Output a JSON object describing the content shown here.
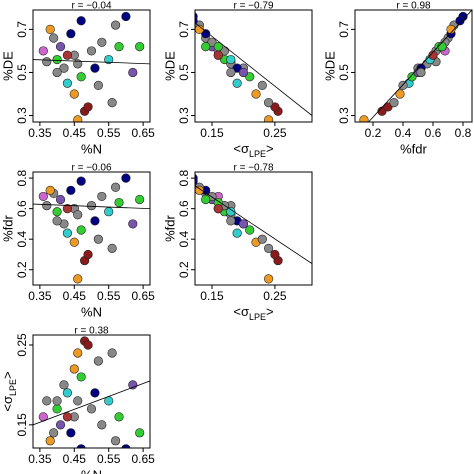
{
  "chart_data": [
    {
      "type": "scatter",
      "title": "r = −0.04",
      "xlabel": "%N",
      "ylabel": "%DE",
      "xlim": [
        0.33,
        0.67
      ],
      "ylim": [
        0.27,
        0.79
      ],
      "xticks": [
        0.35,
        0.45,
        0.55,
        0.65
      ],
      "yticks": [
        0.3,
        0.5,
        0.7
      ],
      "x": [
        0.36,
        0.37,
        0.39,
        0.4,
        0.41,
        0.42,
        0.43,
        0.44,
        0.45,
        0.45,
        0.46,
        0.47,
        0.48,
        0.49,
        0.5,
        0.51,
        0.52,
        0.53,
        0.55,
        0.57,
        0.58,
        0.6,
        0.62,
        0.64,
        0.38,
        0.43,
        0.47,
        0.4,
        0.46,
        0.56
      ],
      "values": [
        0.6,
        0.55,
        0.66,
        0.56,
        0.62,
        0.52,
        0.45,
        0.68,
        0.58,
        0.4,
        0.54,
        0.48,
        0.32,
        0.34,
        0.6,
        0.52,
        0.44,
        0.64,
        0.56,
        0.72,
        0.62,
        0.76,
        0.5,
        0.62,
        0.7,
        0.58,
        0.74,
        0.5,
        0.28,
        0.36
      ],
      "colors": [
        "#cc66cc",
        "#888888",
        "#888888",
        "#33cc33",
        "#7755aa",
        "#888888",
        "#33cccc",
        "#000080",
        "#888888",
        "#ee9922",
        "#888888",
        "#33cc33",
        "#8b1a1a",
        "#8b1a1a",
        "#888888",
        "#000080",
        "#888888",
        "#888888",
        "#33cccc",
        "#888888",
        "#33cc33",
        "#000080",
        "#7755aa",
        "#33cc33",
        "#ee9922",
        "#aa3333",
        "#000080",
        "#888888",
        "#ee9922",
        "#888888"
      ],
      "fit": {
        "x": [
          0.33,
          0.67
        ],
        "y": [
          0.56,
          0.54
        ]
      }
    },
    {
      "type": "scatter",
      "title": "r = −0.79",
      "xlabel": "",
      "xlabel_parts": [
        "<σ",
        "LPE",
        ">"
      ],
      "ylabel": "%DE",
      "xlim": [
        0.123,
        0.309
      ],
      "ylim": [
        0.27,
        0.79
      ],
      "xticks": [
        0.15,
        0.25
      ],
      "yticks": [
        0.3,
        0.5,
        0.7
      ],
      "x": [
        0.16,
        0.18,
        0.14,
        0.17,
        0.15,
        0.2,
        0.19,
        0.14,
        0.16,
        0.22,
        0.18,
        0.21,
        0.255,
        0.25,
        0.17,
        0.19,
        0.23,
        0.15,
        0.18,
        0.13,
        0.16,
        0.12,
        0.2,
        0.14,
        0.13,
        0.16,
        0.12,
        0.18,
        0.24,
        0.24
      ],
      "values": [
        0.6,
        0.55,
        0.66,
        0.56,
        0.62,
        0.52,
        0.45,
        0.68,
        0.58,
        0.4,
        0.54,
        0.48,
        0.32,
        0.34,
        0.6,
        0.52,
        0.44,
        0.64,
        0.56,
        0.72,
        0.62,
        0.76,
        0.5,
        0.62,
        0.7,
        0.58,
        0.74,
        0.5,
        0.28,
        0.36
      ],
      "colors": [
        "#cc66cc",
        "#888888",
        "#888888",
        "#33cc33",
        "#7755aa",
        "#888888",
        "#33cccc",
        "#000080",
        "#888888",
        "#ee9922",
        "#888888",
        "#33cc33",
        "#8b1a1a",
        "#8b1a1a",
        "#888888",
        "#000080",
        "#888888",
        "#888888",
        "#33cccc",
        "#888888",
        "#33cc33",
        "#000080",
        "#7755aa",
        "#33cc33",
        "#ee9922",
        "#aa3333",
        "#000080",
        "#888888",
        "#ee9922",
        "#888888"
      ],
      "fit": {
        "x": [
          0.123,
          0.309
        ],
        "y": [
          0.73,
          0.3
        ]
      }
    },
    {
      "type": "scatter",
      "title": "r = 0.98",
      "xlabel": "%fdr",
      "ylabel": "%DE",
      "xlim": [
        0.08,
        0.86
      ],
      "ylim": [
        0.27,
        0.79
      ],
      "xticks": [
        0.2,
        0.4,
        0.6,
        0.8
      ],
      "yticks": [
        0.3,
        0.5,
        0.7
      ],
      "x": [
        0.68,
        0.62,
        0.7,
        0.58,
        0.66,
        0.5,
        0.44,
        0.72,
        0.6,
        0.38,
        0.56,
        0.46,
        0.26,
        0.3,
        0.62,
        0.52,
        0.4,
        0.68,
        0.58,
        0.74,
        0.64,
        0.8,
        0.5,
        0.66,
        0.72,
        0.6,
        0.78,
        0.52,
        0.14,
        0.34
      ],
      "values": [
        0.6,
        0.55,
        0.66,
        0.56,
        0.62,
        0.52,
        0.45,
        0.68,
        0.58,
        0.4,
        0.54,
        0.48,
        0.32,
        0.34,
        0.6,
        0.52,
        0.44,
        0.64,
        0.56,
        0.72,
        0.62,
        0.76,
        0.5,
        0.62,
        0.7,
        0.58,
        0.74,
        0.5,
        0.28,
        0.36
      ],
      "colors": [
        "#cc66cc",
        "#888888",
        "#888888",
        "#33cc33",
        "#7755aa",
        "#888888",
        "#33cccc",
        "#000080",
        "#888888",
        "#ee9922",
        "#888888",
        "#33cc33",
        "#8b1a1a",
        "#8b1a1a",
        "#888888",
        "#000080",
        "#888888",
        "#888888",
        "#33cccc",
        "#888888",
        "#33cc33",
        "#000080",
        "#7755aa",
        "#33cc33",
        "#ee9922",
        "#aa3333",
        "#000080",
        "#888888",
        "#ee9922",
        "#888888"
      ],
      "fit": {
        "x": [
          0.17,
          0.86
        ],
        "y": [
          0.27,
          0.79
        ]
      }
    },
    {
      "type": "scatter",
      "title": "r = −0.06",
      "xlabel": "%N",
      "ylabel": "%fdr",
      "xlim": [
        0.33,
        0.67
      ],
      "ylim": [
        0.1,
        0.84
      ],
      "xticks": [
        0.35,
        0.45,
        0.55,
        0.65
      ],
      "yticks": [
        0.2,
        0.4,
        0.6,
        0.8
      ],
      "x": [
        0.36,
        0.37,
        0.39,
        0.4,
        0.41,
        0.42,
        0.43,
        0.44,
        0.45,
        0.45,
        0.46,
        0.47,
        0.48,
        0.49,
        0.5,
        0.51,
        0.52,
        0.53,
        0.55,
        0.57,
        0.58,
        0.6,
        0.62,
        0.64,
        0.38,
        0.43,
        0.47,
        0.4,
        0.46,
        0.56
      ],
      "values": [
        0.68,
        0.62,
        0.7,
        0.58,
        0.66,
        0.5,
        0.44,
        0.72,
        0.6,
        0.38,
        0.56,
        0.46,
        0.26,
        0.3,
        0.62,
        0.52,
        0.4,
        0.68,
        0.58,
        0.74,
        0.64,
        0.8,
        0.5,
        0.66,
        0.72,
        0.6,
        0.78,
        0.52,
        0.14,
        0.34
      ],
      "colors": [
        "#cc66cc",
        "#888888",
        "#888888",
        "#33cc33",
        "#7755aa",
        "#888888",
        "#33cccc",
        "#000080",
        "#888888",
        "#ee9922",
        "#888888",
        "#33cc33",
        "#8b1a1a",
        "#8b1a1a",
        "#888888",
        "#000080",
        "#888888",
        "#888888",
        "#33cccc",
        "#888888",
        "#33cc33",
        "#000080",
        "#7755aa",
        "#33cc33",
        "#ee9922",
        "#aa3333",
        "#000080",
        "#888888",
        "#ee9922",
        "#888888"
      ],
      "fit": {
        "x": [
          0.33,
          0.67
        ],
        "y": [
          0.63,
          0.6
        ]
      }
    },
    {
      "type": "scatter",
      "title": "r = −0.78",
      "xlabel": "",
      "xlabel_parts": [
        "<σ",
        "LPE",
        ">"
      ],
      "ylabel": "%fdr",
      "xlim": [
        0.123,
        0.309
      ],
      "ylim": [
        0.1,
        0.84
      ],
      "xticks": [
        0.15,
        0.25
      ],
      "yticks": [
        0.2,
        0.4,
        0.6,
        0.8
      ],
      "x": [
        0.16,
        0.18,
        0.14,
        0.17,
        0.15,
        0.2,
        0.19,
        0.14,
        0.16,
        0.22,
        0.18,
        0.21,
        0.255,
        0.25,
        0.17,
        0.19,
        0.23,
        0.15,
        0.18,
        0.13,
        0.16,
        0.12,
        0.2,
        0.14,
        0.13,
        0.16,
        0.12,
        0.18,
        0.24,
        0.24
      ],
      "values": [
        0.68,
        0.62,
        0.7,
        0.58,
        0.66,
        0.5,
        0.44,
        0.72,
        0.6,
        0.38,
        0.56,
        0.46,
        0.26,
        0.3,
        0.62,
        0.52,
        0.4,
        0.68,
        0.58,
        0.74,
        0.64,
        0.8,
        0.5,
        0.66,
        0.72,
        0.6,
        0.78,
        0.52,
        0.14,
        0.34
      ],
      "colors": [
        "#cc66cc",
        "#888888",
        "#888888",
        "#33cc33",
        "#7755aa",
        "#888888",
        "#33cccc",
        "#000080",
        "#888888",
        "#ee9922",
        "#888888",
        "#33cc33",
        "#8b1a1a",
        "#8b1a1a",
        "#888888",
        "#000080",
        "#888888",
        "#888888",
        "#33cccc",
        "#888888",
        "#33cc33",
        "#000080",
        "#7755aa",
        "#33cc33",
        "#ee9922",
        "#aa3333",
        "#000080",
        "#888888",
        "#ee9922",
        "#888888"
      ],
      "fit": {
        "x": [
          0.123,
          0.309
        ],
        "y": [
          0.75,
          0.24
        ]
      }
    },
    {
      "type": "scatter",
      "title": "r = 0.38",
      "xlabel": "%N",
      "ylabel": "",
      "ylabel_parts": [
        "<σ",
        "LPE",
        ">"
      ],
      "xlim": [
        0.33,
        0.67
      ],
      "ylim": [
        0.121,
        0.2625
      ],
      "xticks": [
        0.35,
        0.45,
        0.55,
        0.65
      ],
      "yticks": [
        0.15,
        0.25
      ],
      "x": [
        0.36,
        0.37,
        0.39,
        0.4,
        0.41,
        0.42,
        0.43,
        0.44,
        0.45,
        0.45,
        0.46,
        0.47,
        0.48,
        0.49,
        0.5,
        0.51,
        0.52,
        0.53,
        0.55,
        0.57,
        0.58,
        0.6,
        0.62,
        0.64,
        0.38,
        0.43,
        0.47,
        0.4,
        0.46,
        0.56
      ],
      "values": [
        0.16,
        0.18,
        0.14,
        0.17,
        0.15,
        0.2,
        0.19,
        0.14,
        0.16,
        0.22,
        0.18,
        0.21,
        0.255,
        0.25,
        0.17,
        0.19,
        0.23,
        0.15,
        0.18,
        0.13,
        0.16,
        0.12,
        0.2,
        0.14,
        0.13,
        0.16,
        0.12,
        0.18,
        0.24,
        0.24
      ],
      "colors": [
        "#cc66cc",
        "#888888",
        "#888888",
        "#33cc33",
        "#7755aa",
        "#888888",
        "#33cccc",
        "#000080",
        "#888888",
        "#ee9922",
        "#888888",
        "#33cc33",
        "#8b1a1a",
        "#8b1a1a",
        "#888888",
        "#000080",
        "#888888",
        "#888888",
        "#33cccc",
        "#888888",
        "#33cc33",
        "#000080",
        "#7755aa",
        "#33cc33",
        "#ee9922",
        "#aa3333",
        "#000080",
        "#888888",
        "#ee9922",
        "#888888"
      ],
      "fit": {
        "x": [
          0.33,
          0.67
        ],
        "y": [
          0.15,
          0.205
        ]
      }
    }
  ]
}
